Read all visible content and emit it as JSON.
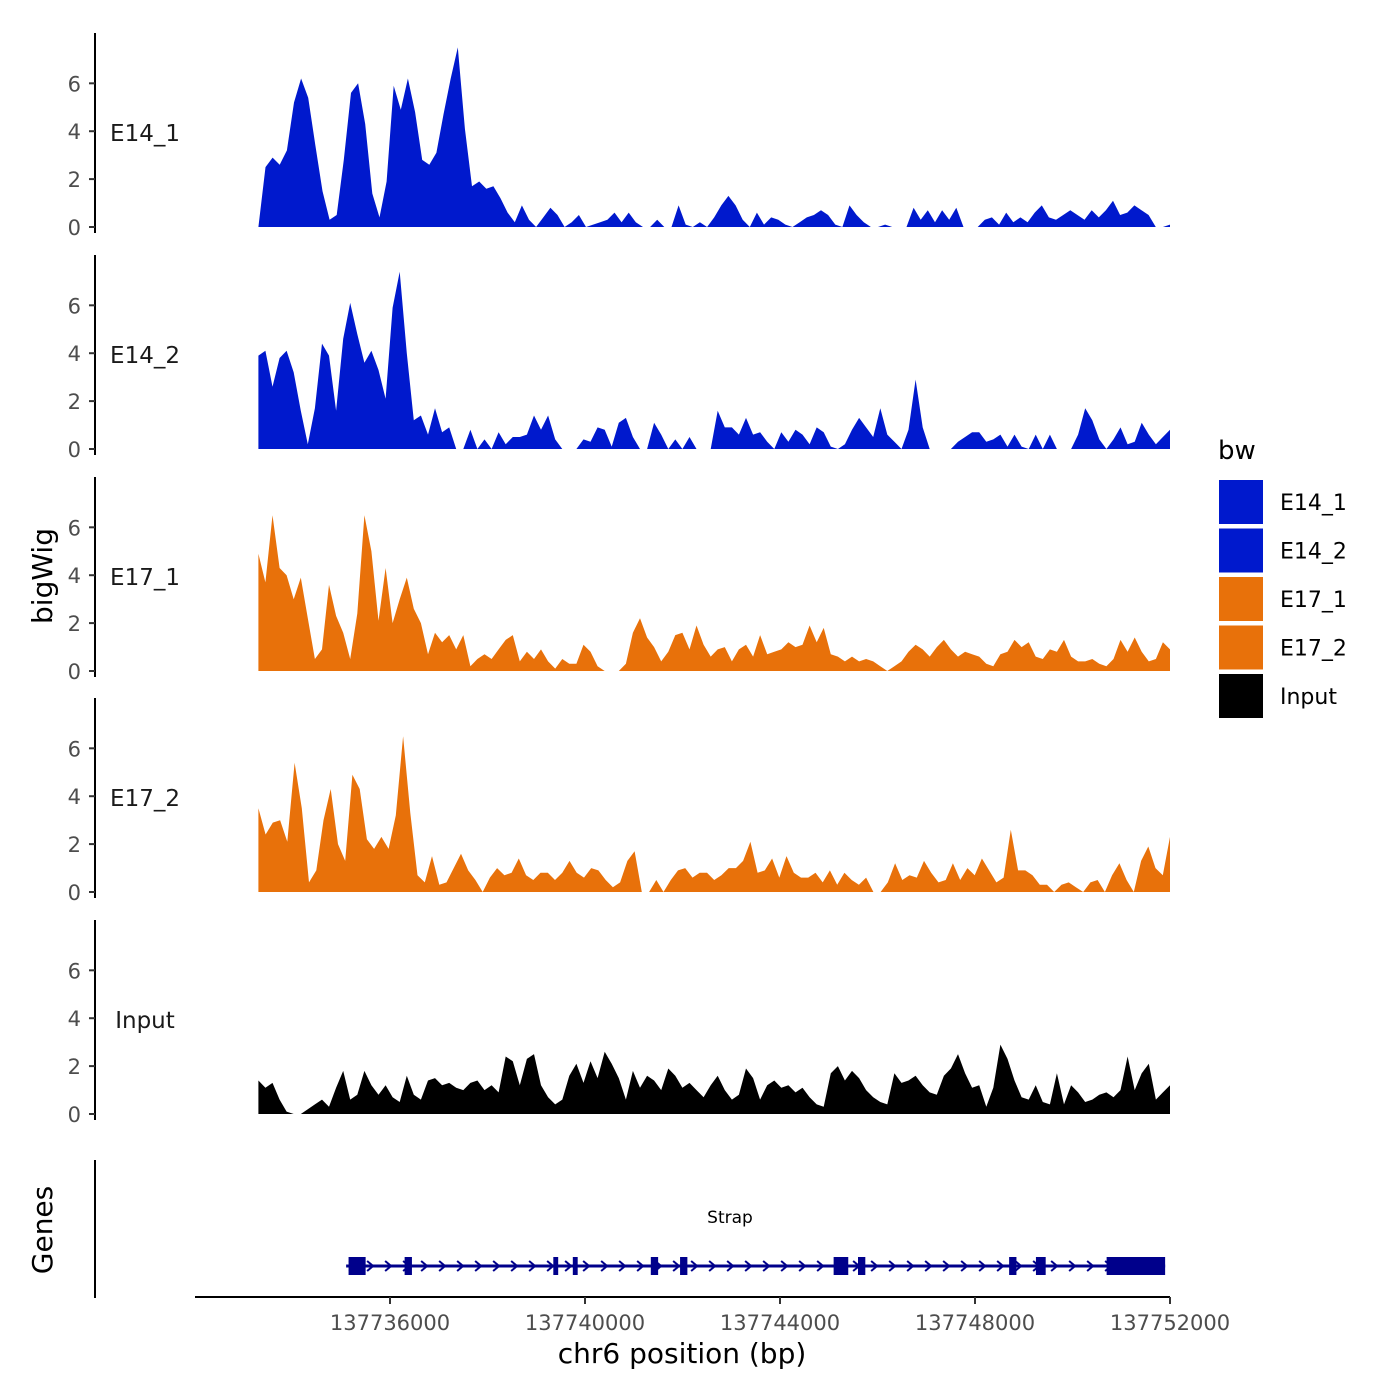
{
  "chart_data": {
    "type": "area",
    "title": "",
    "ylabel": "bigWig",
    "xlabel": "chr6 position (bp)",
    "xlim": [
      137732000,
      137752000
    ],
    "x_ticks": [
      137736000,
      137740000,
      137744000,
      137748000,
      137752000
    ],
    "x_tick_labels": [
      "137736000",
      "137740000",
      "137744000",
      "137748000",
      "137752000"
    ],
    "ylim": [
      0,
      7.6
    ],
    "y_ticks": [
      0,
      2,
      4,
      6
    ],
    "y_tick_labels": [
      "0",
      "2",
      "4",
      "6"
    ],
    "legend": {
      "title": "bw",
      "position": "right",
      "entries": [
        {
          "label": "E14_1",
          "color": "#0019CD"
        },
        {
          "label": "E14_2",
          "color": "#0019CD"
        },
        {
          "label": "E17_1",
          "color": "#E8710A"
        },
        {
          "label": "E17_2",
          "color": "#E8710A"
        },
        {
          "label": "Input",
          "color": "#000000"
        }
      ]
    },
    "series": [
      {
        "name": "E14_1",
        "color": "#0019CD",
        "x_start": 137733300,
        "x_end": 137752000,
        "values": [
          0,
          2.5,
          2.9,
          2.6,
          3.2,
          5.2,
          6.2,
          5.4,
          3.4,
          1.5,
          0.3,
          0.5,
          2.8,
          5.6,
          6.0,
          4.3,
          1.4,
          0.4,
          1.9,
          5.9,
          4.9,
          6.2,
          4.8,
          2.8,
          2.6,
          3.1,
          4.7,
          6.2,
          7.5,
          4.1,
          1.7,
          1.9,
          1.6,
          1.7,
          1.2,
          0.6,
          0.2,
          0.9,
          0.3,
          0,
          0.4,
          0.8,
          0.5,
          0,
          0.2,
          0.5,
          0,
          0.1,
          0.2,
          0.3,
          0.6,
          0.2,
          0.6,
          0.2,
          0,
          0,
          0.3,
          0,
          0,
          0.9,
          0.1,
          0,
          0.2,
          0,
          0.4,
          0.9,
          1.3,
          0.9,
          0.3,
          0,
          0.6,
          0.1,
          0.4,
          0.3,
          0.1,
          0,
          0.2,
          0.4,
          0.5,
          0.7,
          0.5,
          0.1,
          0,
          0.9,
          0.5,
          0.2,
          0,
          0,
          0.1,
          0,
          0,
          0,
          0.8,
          0.3,
          0.7,
          0.2,
          0.7,
          0.3,
          0.8,
          0,
          0,
          0,
          0.3,
          0.4,
          0.1,
          0.6,
          0.2,
          0.4,
          0.2,
          0.6,
          0.9,
          0.4,
          0.3,
          0.5,
          0.7,
          0.5,
          0.3,
          0.7,
          0.4,
          0.7,
          1.1,
          0.5,
          0.6,
          0.9,
          0.7,
          0.5,
          0,
          0,
          0.1
        ]
      },
      {
        "name": "E14_2",
        "color": "#0019CD",
        "x_start": 137733300,
        "x_end": 137752000,
        "values": [
          3.9,
          4.1,
          2.6,
          3.8,
          4.1,
          3.2,
          1.6,
          0.2,
          1.7,
          4.4,
          3.9,
          1.6,
          4.6,
          6.1,
          4.8,
          3.6,
          4.1,
          3.3,
          2.1,
          5.9,
          7.4,
          4.0,
          1.2,
          1.4,
          0.6,
          1.7,
          0.7,
          0.9,
          0,
          0,
          0.8,
          0,
          0.4,
          0,
          0.7,
          0.2,
          0.5,
          0.5,
          0.6,
          1.4,
          0.8,
          1.4,
          0.4,
          0,
          0,
          0,
          0.4,
          0.3,
          0.9,
          0.8,
          0.1,
          1.1,
          1.3,
          0.5,
          0,
          0,
          1.1,
          0.6,
          0,
          0.4,
          0,
          0.5,
          0,
          0,
          0,
          1.6,
          0.9,
          0.9,
          0.6,
          1.3,
          0.6,
          0.7,
          0.3,
          0,
          0.7,
          0.3,
          0.8,
          0.6,
          0.2,
          0.9,
          0.7,
          0.1,
          0,
          0.2,
          0.8,
          1.3,
          0.9,
          0.5,
          1.7,
          0.6,
          0.3,
          0,
          0.8,
          2.9,
          0.9,
          0,
          0,
          0,
          0,
          0.3,
          0.5,
          0.7,
          0.7,
          0.3,
          0.4,
          0.6,
          0.1,
          0.6,
          0.1,
          0,
          0.6,
          0,
          0.6,
          0,
          0,
          0,
          0.6,
          1.7,
          1.2,
          0.4,
          0,
          0.4,
          0.9,
          0.2,
          0.3,
          1.1,
          0.6,
          0.2,
          0.5,
          0.8
        ]
      },
      {
        "name": "E17_1",
        "color": "#E8710A",
        "x_start": 137733300,
        "x_end": 137752000,
        "values": [
          4.9,
          3.7,
          6.5,
          4.3,
          4.0,
          3.0,
          3.9,
          2.2,
          0.5,
          0.9,
          3.6,
          2.3,
          1.6,
          0.5,
          2.4,
          6.5,
          5.0,
          2.1,
          4.3,
          2.0,
          3.0,
          3.9,
          2.6,
          2.0,
          0.7,
          1.6,
          1.2,
          1.5,
          0.9,
          1.5,
          0.2,
          0.5,
          0.7,
          0.5,
          0.9,
          1.3,
          1.5,
          0.4,
          0.8,
          0.5,
          0.9,
          0.4,
          0.1,
          0.5,
          0.3,
          0.3,
          1.1,
          0.8,
          0.2,
          0,
          0,
          0,
          0.3,
          1.6,
          2.2,
          1.4,
          1.0,
          0.4,
          0.8,
          1.5,
          1.6,
          0.9,
          1.9,
          1.1,
          0.6,
          0.9,
          1.0,
          0.4,
          0.9,
          1.1,
          0.6,
          1.5,
          0.7,
          0.8,
          0.9,
          1.2,
          1.0,
          1.1,
          1.9,
          1.2,
          1.8,
          0.7,
          0.6,
          0.4,
          0.6,
          0.4,
          0.5,
          0.4,
          0.2,
          0,
          0.2,
          0.4,
          0.8,
          1.1,
          0.9,
          0.6,
          1.0,
          1.3,
          0.9,
          0.6,
          0.8,
          0.7,
          0.6,
          0.3,
          0.2,
          0.7,
          0.8,
          1.3,
          1.0,
          1.2,
          0.6,
          0.5,
          0.9,
          0.8,
          1.3,
          0.6,
          0.4,
          0.4,
          0.5,
          0.3,
          0.2,
          0.5,
          1.3,
          0.8,
          1.4,
          0.8,
          0.4,
          0.5,
          1.2,
          0.9
        ]
      },
      {
        "name": "E17_2",
        "color": "#E8710A",
        "x_start": 137733300,
        "x_end": 137752000,
        "values": [
          3.5,
          2.4,
          2.9,
          3.0,
          2.1,
          5.4,
          3.5,
          0.4,
          0.9,
          3.0,
          4.3,
          2.0,
          1.3,
          4.9,
          4.3,
          2.2,
          1.8,
          2.3,
          1.8,
          3.2,
          6.5,
          3.3,
          0.7,
          0.4,
          1.5,
          0.3,
          0.4,
          1.0,
          1.6,
          0.9,
          0.5,
          0,
          0.6,
          1.0,
          0.7,
          0.8,
          1.4,
          0.7,
          0.5,
          0.8,
          0.8,
          0.5,
          0.8,
          1.3,
          0.8,
          0.6,
          1.0,
          0.9,
          0.5,
          0.2,
          0.4,
          1.3,
          1.7,
          0,
          0,
          0.5,
          0,
          0.5,
          0.9,
          1.0,
          0.6,
          0.8,
          0.8,
          0.5,
          0.7,
          1.0,
          1.0,
          1.3,
          2.1,
          0.8,
          0.9,
          1.4,
          0.6,
          1.5,
          0.8,
          0.6,
          0.6,
          0.8,
          0.4,
          0.9,
          0.3,
          0.8,
          0.5,
          0.3,
          0.6,
          0,
          0,
          0.4,
          1.2,
          0.5,
          0.7,
          0.6,
          1.3,
          0.8,
          0.4,
          0.5,
          1.2,
          0.5,
          1.0,
          0.7,
          1.4,
          0.9,
          0.4,
          0.6,
          2.6,
          0.9,
          0.9,
          0.7,
          0.3,
          0.3,
          0,
          0.3,
          0.4,
          0.2,
          0,
          0.4,
          0.5,
          0,
          0.7,
          1.2,
          0.5,
          0,
          1.3,
          1.9,
          1.0,
          0.7,
          2.3
        ]
      },
      {
        "name": "Input",
        "color": "#000000",
        "x_start": 137733300,
        "x_end": 137752000,
        "values": [
          1.4,
          1.1,
          1.3,
          0.6,
          0.1,
          0,
          0,
          0.2,
          0.4,
          0.6,
          0.3,
          1.1,
          1.8,
          0.6,
          0.8,
          1.8,
          1.2,
          0.8,
          1.2,
          0.7,
          0.5,
          1.6,
          0.8,
          0.6,
          1.4,
          1.5,
          1.2,
          1.3,
          1.1,
          1.0,
          1.3,
          1.4,
          1.0,
          1.2,
          0.9,
          2.4,
          2.2,
          1.2,
          2.3,
          2.5,
          1.2,
          0.7,
          0.4,
          0.6,
          1.6,
          2.1,
          1.3,
          2.2,
          1.5,
          2.6,
          2.1,
          1.5,
          0.6,
          1.8,
          1.1,
          1.6,
          1.4,
          1.0,
          1.9,
          1.6,
          1.1,
          1.3,
          1.0,
          0.7,
          1.2,
          1.6,
          1.0,
          0.6,
          0.8,
          1.9,
          1.5,
          0.6,
          1.2,
          1.4,
          1.1,
          1.2,
          0.9,
          1.1,
          0.7,
          0.4,
          0.3,
          1.7,
          2.0,
          1.4,
          1.8,
          1.5,
          1.0,
          0.7,
          0.5,
          0.4,
          1.7,
          1.3,
          1.4,
          1.6,
          1.2,
          0.9,
          0.8,
          1.6,
          1.9,
          2.5,
          1.7,
          1.1,
          1.2,
          0.3,
          1.1,
          2.9,
          2.3,
          1.4,
          0.7,
          0.6,
          1.2,
          0.5,
          0.4,
          1.7,
          0.4,
          1.2,
          0.9,
          0.5,
          0.6,
          0.8,
          0.9,
          0.7,
          1.0,
          2.4,
          1.0,
          1.7,
          2.1,
          0.6,
          0.9,
          1.2
        ]
      }
    ],
    "gene_track": {
      "label": "Genes",
      "gene_name": "Strap",
      "strand": "+",
      "color": "#00008B",
      "start": 137735100,
      "end": 137751900,
      "exons": [
        [
          137735150,
          137735500
        ],
        [
          137736300,
          137736450
        ],
        [
          137739350,
          137739450
        ],
        [
          137739750,
          137739850
        ],
        [
          137741350,
          137741500
        ],
        [
          137741950,
          137742100
        ],
        [
          137745100,
          137745400
        ],
        [
          137745600,
          137745750
        ],
        [
          137748700,
          137748850
        ],
        [
          137749250,
          137749450
        ],
        [
          137750700,
          137751900
        ]
      ]
    }
  }
}
